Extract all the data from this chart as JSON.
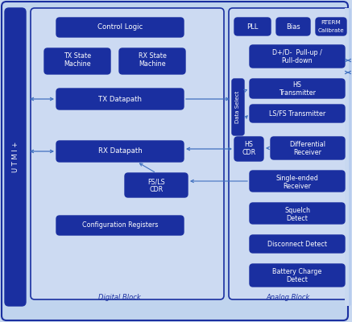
{
  "fig_w": 4.37,
  "fig_h": 4.0,
  "dpi": 100,
  "bg_outer": "#c8d8f0",
  "bg_light": "#ccdaf2",
  "dark_blue": "#1a2fa0",
  "white": "#ffffff",
  "arrow_color": "#4070c0",
  "d_arrow_color": "#4070c0",
  "digital_label": "Digital Block",
  "analog_label": "Analog Block",
  "utmi_label": "U T M I +"
}
